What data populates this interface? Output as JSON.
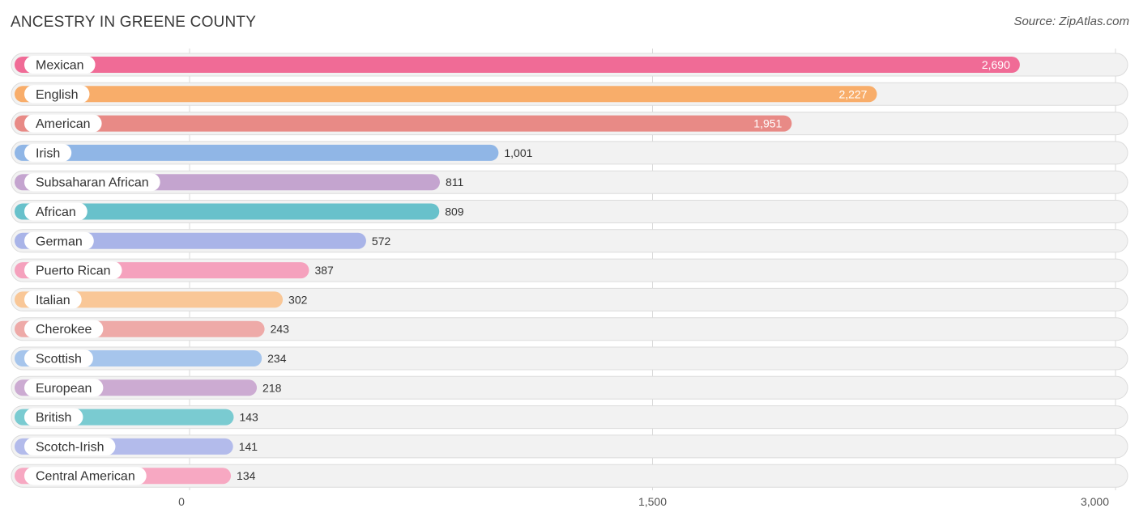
{
  "title": "ANCESTRY IN GREENE COUNTY",
  "source": "Source: ZipAtlas.com",
  "chart_data": {
    "type": "bar",
    "orientation": "horizontal",
    "title": "ANCESTRY IN GREENE COUNTY",
    "xlabel": "",
    "ylabel": "",
    "xlim": [
      0,
      3000
    ],
    "ticks": [
      0,
      1500,
      3000
    ],
    "tick_labels": [
      "0",
      "1,500",
      "3,000"
    ],
    "grid": true,
    "bars": [
      {
        "category": "Mexican",
        "value": 2690,
        "label": "2,690",
        "color": "#f06b96"
      },
      {
        "category": "English",
        "value": 2227,
        "label": "2,227",
        "color": "#f8ad6a"
      },
      {
        "category": "American",
        "value": 1951,
        "label": "1,951",
        "color": "#e88a86"
      },
      {
        "category": "Irish",
        "value": 1001,
        "label": "1,001",
        "color": "#90b6e6"
      },
      {
        "category": "Subsaharan African",
        "value": 811,
        "label": "811",
        "color": "#c4a4cf"
      },
      {
        "category": "African",
        "value": 809,
        "label": "809",
        "color": "#68c1cb"
      },
      {
        "category": "German",
        "value": 572,
        "label": "572",
        "color": "#a9b4e8"
      },
      {
        "category": "Puerto Rican",
        "value": 387,
        "label": "387",
        "color": "#f5a1bd"
      },
      {
        "category": "Italian",
        "value": 302,
        "label": "302",
        "color": "#f9c797"
      },
      {
        "category": "Cherokee",
        "value": 243,
        "label": "243",
        "color": "#eeaaa8"
      },
      {
        "category": "Scottish",
        "value": 234,
        "label": "234",
        "color": "#a6c5ec"
      },
      {
        "category": "European",
        "value": 218,
        "label": "218",
        "color": "#ccabd2"
      },
      {
        "category": "British",
        "value": 143,
        "label": "143",
        "color": "#7acbd1"
      },
      {
        "category": "Scotch-Irish",
        "value": 141,
        "label": "141",
        "color": "#b3bbeb"
      },
      {
        "category": "Central American",
        "value": 134,
        "label": "134",
        "color": "#f7a8c2"
      }
    ]
  }
}
